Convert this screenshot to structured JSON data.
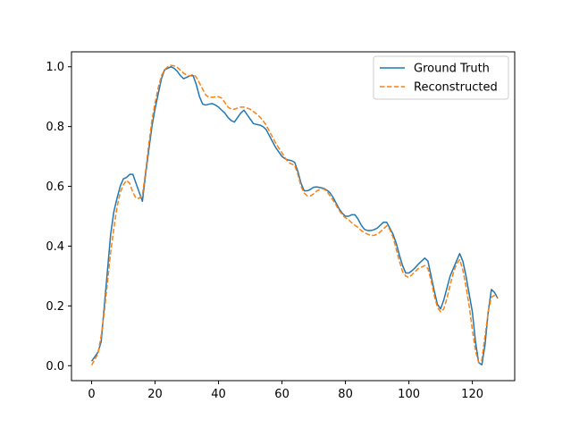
{
  "chart_data": {
    "type": "line",
    "title": "",
    "xlabel": "",
    "ylabel": "",
    "xlim": [
      -6.35,
      133.35
    ],
    "ylim": [
      -0.05,
      1.05
    ],
    "xticks": [
      0,
      20,
      40,
      60,
      80,
      100,
      120
    ],
    "yticks": [
      0.0,
      0.2,
      0.4,
      0.6,
      0.8,
      1.0
    ],
    "xtick_labels": [
      "0",
      "20",
      "40",
      "60",
      "80",
      "100",
      "120"
    ],
    "ytick_labels": [
      "0.0",
      "0.2",
      "0.4",
      "0.6",
      "0.8",
      "1.0"
    ],
    "grid": false,
    "legend_position": "top-right",
    "series": [
      {
        "name": "Ground Truth",
        "color": "#1f77b4",
        "style": "solid",
        "points": [
          [
            0,
            0.015
          ],
          [
            2,
            0.045
          ],
          [
            3,
            0.08
          ],
          [
            4,
            0.2
          ],
          [
            5,
            0.32
          ],
          [
            6,
            0.44
          ],
          [
            7,
            0.515
          ],
          [
            8,
            0.56
          ],
          [
            9,
            0.6
          ],
          [
            10,
            0.625
          ],
          [
            11,
            0.63
          ],
          [
            12,
            0.64
          ],
          [
            13,
            0.64
          ],
          [
            14,
            0.61
          ],
          [
            15,
            0.58
          ],
          [
            16,
            0.55
          ],
          [
            17,
            0.64
          ],
          [
            18,
            0.72
          ],
          [
            19,
            0.8
          ],
          [
            20,
            0.86
          ],
          [
            21,
            0.91
          ],
          [
            22,
            0.96
          ],
          [
            23,
            0.99
          ],
          [
            24,
            0.995
          ],
          [
            25,
            1.0
          ],
          [
            26,
            0.995
          ],
          [
            27,
            0.985
          ],
          [
            28,
            0.97
          ],
          [
            29,
            0.96
          ],
          [
            30,
            0.965
          ],
          [
            31,
            0.97
          ],
          [
            32,
            0.97
          ],
          [
            33,
            0.94
          ],
          [
            34,
            0.9
          ],
          [
            35,
            0.875
          ],
          [
            36,
            0.872
          ],
          [
            37,
            0.875
          ],
          [
            38,
            0.877
          ],
          [
            39,
            0.872
          ],
          [
            40,
            0.865
          ],
          [
            41,
            0.855
          ],
          [
            42,
            0.845
          ],
          [
            43,
            0.83
          ],
          [
            44,
            0.82
          ],
          [
            45,
            0.815
          ],
          [
            46,
            0.83
          ],
          [
            47,
            0.845
          ],
          [
            48,
            0.855
          ],
          [
            49,
            0.84
          ],
          [
            50,
            0.825
          ],
          [
            51,
            0.81
          ],
          [
            52,
            0.807
          ],
          [
            53,
            0.805
          ],
          [
            54,
            0.8
          ],
          [
            55,
            0.79
          ],
          [
            56,
            0.77
          ],
          [
            57,
            0.75
          ],
          [
            58,
            0.73
          ],
          [
            59,
            0.715
          ],
          [
            60,
            0.7
          ],
          [
            61,
            0.692
          ],
          [
            62,
            0.688
          ],
          [
            63,
            0.686
          ],
          [
            64,
            0.68
          ],
          [
            65,
            0.65
          ],
          [
            66,
            0.61
          ],
          [
            67,
            0.585
          ],
          [
            68,
            0.585
          ],
          [
            69,
            0.59
          ],
          [
            70,
            0.597
          ],
          [
            71,
            0.598
          ],
          [
            72,
            0.596
          ],
          [
            73,
            0.594
          ],
          [
            74,
            0.588
          ],
          [
            75,
            0.58
          ],
          [
            76,
            0.565
          ],
          [
            77,
            0.545
          ],
          [
            78,
            0.525
          ],
          [
            79,
            0.51
          ],
          [
            80,
            0.5
          ],
          [
            81,
            0.5
          ],
          [
            82,
            0.505
          ],
          [
            83,
            0.505
          ],
          [
            84,
            0.49
          ],
          [
            85,
            0.47
          ],
          [
            86,
            0.456
          ],
          [
            87,
            0.452
          ],
          [
            88,
            0.452
          ],
          [
            89,
            0.455
          ],
          [
            90,
            0.46
          ],
          [
            91,
            0.47
          ],
          [
            92,
            0.48
          ],
          [
            93,
            0.48
          ],
          [
            94,
            0.46
          ],
          [
            95,
            0.44
          ],
          [
            96,
            0.41
          ],
          [
            97,
            0.37
          ],
          [
            98,
            0.335
          ],
          [
            99,
            0.31
          ],
          [
            100,
            0.31
          ],
          [
            101,
            0.318
          ],
          [
            102,
            0.328
          ],
          [
            103,
            0.34
          ],
          [
            104,
            0.35
          ],
          [
            105,
            0.36
          ],
          [
            106,
            0.35
          ],
          [
            107,
            0.3
          ],
          [
            108,
            0.25
          ],
          [
            109,
            0.205
          ],
          [
            110,
            0.19
          ],
          [
            111,
            0.22
          ],
          [
            112,
            0.26
          ],
          [
            113,
            0.3
          ],
          [
            114,
            0.325
          ],
          [
            115,
            0.35
          ],
          [
            116,
            0.375
          ],
          [
            117,
            0.35
          ],
          [
            118,
            0.3
          ],
          [
            119,
            0.24
          ],
          [
            120,
            0.18
          ],
          [
            121,
            0.08
          ],
          [
            122,
            0.01
          ],
          [
            123,
            0.003
          ],
          [
            124,
            0.07
          ],
          [
            125,
            0.18
          ],
          [
            126,
            0.255
          ],
          [
            127,
            0.245
          ],
          [
            128,
            0.225
          ]
        ]
      },
      {
        "name": "Reconstructed",
        "color": "#ff7f0e",
        "style": "dashed",
        "points": [
          [
            0,
            0.002
          ],
          [
            2,
            0.04
          ],
          [
            3,
            0.1
          ],
          [
            4,
            0.18
          ],
          [
            5,
            0.28
          ],
          [
            6,
            0.38
          ],
          [
            7,
            0.46
          ],
          [
            8,
            0.53
          ],
          [
            9,
            0.58
          ],
          [
            10,
            0.605
          ],
          [
            11,
            0.62
          ],
          [
            12,
            0.61
          ],
          [
            13,
            0.58
          ],
          [
            14,
            0.56
          ],
          [
            15,
            0.56
          ],
          [
            16,
            0.57
          ],
          [
            17,
            0.65
          ],
          [
            18,
            0.74
          ],
          [
            19,
            0.82
          ],
          [
            20,
            0.88
          ],
          [
            21,
            0.93
          ],
          [
            22,
            0.97
          ],
          [
            23,
            0.99
          ],
          [
            24,
            1.0
          ],
          [
            25,
            1.005
          ],
          [
            26,
            1.003
          ],
          [
            27,
            0.998
          ],
          [
            28,
            0.988
          ],
          [
            29,
            0.978
          ],
          [
            30,
            0.972
          ],
          [
            31,
            0.97
          ],
          [
            32,
            0.975
          ],
          [
            33,
            0.965
          ],
          [
            34,
            0.945
          ],
          [
            35,
            0.925
          ],
          [
            36,
            0.905
          ],
          [
            37,
            0.898
          ],
          [
            38,
            0.898
          ],
          [
            39,
            0.9
          ],
          [
            40,
            0.9
          ],
          [
            41,
            0.895
          ],
          [
            42,
            0.88
          ],
          [
            43,
            0.865
          ],
          [
            44,
            0.858
          ],
          [
            45,
            0.858
          ],
          [
            46,
            0.862
          ],
          [
            47,
            0.865
          ],
          [
            48,
            0.865
          ],
          [
            49,
            0.862
          ],
          [
            50,
            0.858
          ],
          [
            51,
            0.85
          ],
          [
            52,
            0.842
          ],
          [
            53,
            0.832
          ],
          [
            54,
            0.82
          ],
          [
            55,
            0.805
          ],
          [
            56,
            0.785
          ],
          [
            57,
            0.765
          ],
          [
            58,
            0.745
          ],
          [
            59,
            0.728
          ],
          [
            60,
            0.712
          ],
          [
            61,
            0.695
          ],
          [
            62,
            0.68
          ],
          [
            63,
            0.675
          ],
          [
            64,
            0.67
          ],
          [
            65,
            0.64
          ],
          [
            66,
            0.6
          ],
          [
            67,
            0.578
          ],
          [
            68,
            0.568
          ],
          [
            69,
            0.568
          ],
          [
            70,
            0.575
          ],
          [
            71,
            0.585
          ],
          [
            72,
            0.59
          ],
          [
            73,
            0.592
          ],
          [
            74,
            0.585
          ],
          [
            75,
            0.57
          ],
          [
            76,
            0.555
          ],
          [
            77,
            0.538
          ],
          [
            78,
            0.52
          ],
          [
            79,
            0.505
          ],
          [
            80,
            0.495
          ],
          [
            81,
            0.488
          ],
          [
            82,
            0.478
          ],
          [
            83,
            0.47
          ],
          [
            84,
            0.462
          ],
          [
            85,
            0.452
          ],
          [
            86,
            0.445
          ],
          [
            87,
            0.44
          ],
          [
            88,
            0.436
          ],
          [
            89,
            0.436
          ],
          [
            90,
            0.44
          ],
          [
            91,
            0.448
          ],
          [
            92,
            0.458
          ],
          [
            93,
            0.468
          ],
          [
            94,
            0.455
          ],
          [
            95,
            0.43
          ],
          [
            96,
            0.39
          ],
          [
            97,
            0.35
          ],
          [
            98,
            0.315
          ],
          [
            99,
            0.3
          ],
          [
            100,
            0.295
          ],
          [
            101,
            0.305
          ],
          [
            102,
            0.315
          ],
          [
            103,
            0.325
          ],
          [
            104,
            0.33
          ],
          [
            105,
            0.335
          ],
          [
            106,
            0.325
          ],
          [
            107,
            0.285
          ],
          [
            108,
            0.235
          ],
          [
            109,
            0.195
          ],
          [
            110,
            0.18
          ],
          [
            111,
            0.19
          ],
          [
            112,
            0.225
          ],
          [
            113,
            0.27
          ],
          [
            114,
            0.31
          ],
          [
            115,
            0.34
          ],
          [
            116,
            0.355
          ],
          [
            117,
            0.32
          ],
          [
            118,
            0.265
          ],
          [
            119,
            0.2
          ],
          [
            120,
            0.12
          ],
          [
            121,
            0.05
          ],
          [
            122,
            0.01
          ],
          [
            123,
            0.02
          ],
          [
            124,
            0.1
          ],
          [
            125,
            0.18
          ],
          [
            126,
            0.23
          ],
          [
            127,
            0.235
          ],
          [
            128,
            0.23
          ]
        ]
      }
    ]
  }
}
